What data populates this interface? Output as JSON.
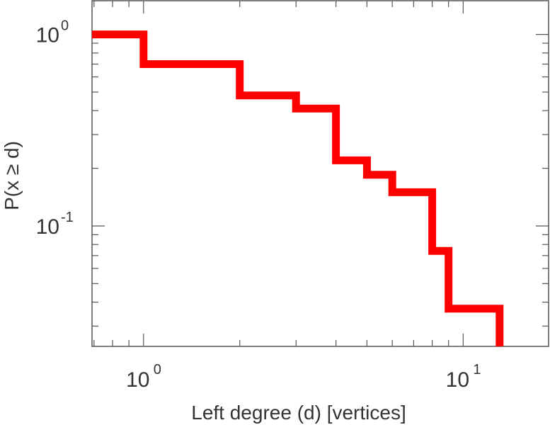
{
  "chart_data": {
    "type": "line",
    "subtype": "step-ccdf",
    "title": "",
    "xlabel": "Left degree (d) [vertices]",
    "ylabel": "P(x ≥ d)",
    "xscale": "log",
    "yscale": "log",
    "xlim": [
      0.69,
      18.5
    ],
    "ylim": [
      0.0235,
      1.5
    ],
    "grid": false,
    "x_ticks": [
      {
        "base": "10",
        "exp": "0",
        "value": 1
      },
      {
        "base": "10",
        "exp": "1",
        "value": 10
      }
    ],
    "y_ticks": [
      {
        "base": "10",
        "exp": "0",
        "value": 1
      },
      {
        "base": "10",
        "exp": "-1",
        "value": 0.1
      }
    ],
    "series": [
      {
        "color": "#ff0000",
        "points": [
          {
            "x": 0.69,
            "y": 1.0
          },
          {
            "x": 1,
            "y": 1.0
          },
          {
            "x": 1,
            "y": 0.7
          },
          {
            "x": 2,
            "y": 0.7
          },
          {
            "x": 2,
            "y": 0.48
          },
          {
            "x": 3,
            "y": 0.48
          },
          {
            "x": 3,
            "y": 0.41
          },
          {
            "x": 4,
            "y": 0.41
          },
          {
            "x": 4,
            "y": 0.22
          },
          {
            "x": 5,
            "y": 0.22
          },
          {
            "x": 5,
            "y": 0.185
          },
          {
            "x": 6,
            "y": 0.185
          },
          {
            "x": 6,
            "y": 0.15
          },
          {
            "x": 8,
            "y": 0.15
          },
          {
            "x": 8,
            "y": 0.074
          },
          {
            "x": 9,
            "y": 0.074
          },
          {
            "x": 9,
            "y": 0.037
          },
          {
            "x": 13,
            "y": 0.037
          },
          {
            "x": 13,
            "y": 0.0235
          }
        ]
      }
    ]
  }
}
